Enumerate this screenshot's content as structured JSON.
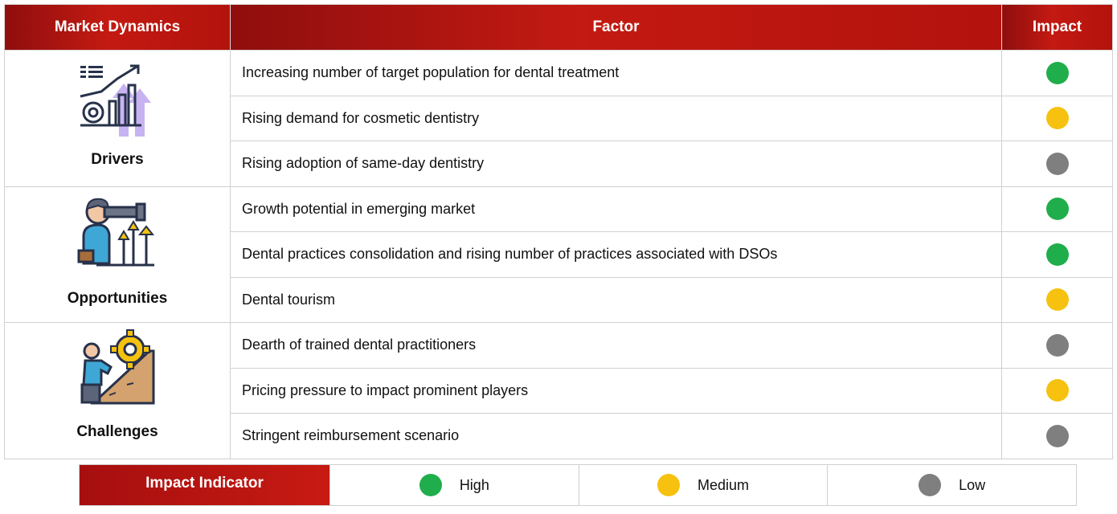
{
  "header": {
    "col_dynamics": "Market Dynamics",
    "col_factor": "Factor",
    "col_impact": "Impact"
  },
  "groups": [
    {
      "label": "Drivers",
      "icon": "growth-chart-icon",
      "rows": [
        {
          "factor": "Increasing number of target population for dental treatment",
          "impact": "high"
        },
        {
          "factor": "Rising demand for cosmetic dentistry",
          "impact": "medium"
        },
        {
          "factor": "Rising adoption of same-day dentistry",
          "impact": "low"
        }
      ]
    },
    {
      "label": "Opportunities",
      "icon": "telescope-person-icon",
      "rows": [
        {
          "factor": "Growth potential in emerging market",
          "impact": "high"
        },
        {
          "factor": "Dental practices consolidation and rising number of practices associated with DSOs",
          "impact": "high"
        },
        {
          "factor": "Dental tourism",
          "impact": "medium"
        }
      ]
    },
    {
      "label": "Challenges",
      "icon": "climber-gear-icon",
      "rows": [
        {
          "factor": "Dearth of trained dental practitioners",
          "impact": "low"
        },
        {
          "factor": "Pricing pressure to impact prominent players",
          "impact": "medium"
        },
        {
          "factor": "Stringent reimbursement scenario",
          "impact": "low"
        }
      ]
    }
  ],
  "legend": {
    "title": "Impact Indicator",
    "items": [
      {
        "label": "High",
        "level": "high",
        "color": "#1fae4b"
      },
      {
        "label": "Medium",
        "level": "medium",
        "color": "#f6c20f"
      },
      {
        "label": "Low",
        "level": "low",
        "color": "#7f7f7f"
      }
    ]
  },
  "colors": {
    "header_red": "#b3120d",
    "high": "#1fae4b",
    "medium": "#f6c20f",
    "low": "#7f7f7f"
  }
}
